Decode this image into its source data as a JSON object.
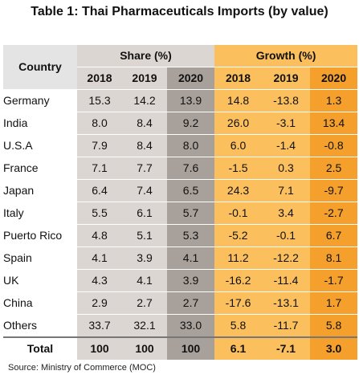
{
  "title": "Table 1: Thai Pharmaceuticals Imports (by value)",
  "headers": {
    "country": "Country",
    "share": "Share (%)",
    "growth": "Growth (%)",
    "years": [
      "2018",
      "2019",
      "2020"
    ]
  },
  "rows": [
    {
      "country": "Germany",
      "share": [
        "15.3",
        "14.2",
        "13.9"
      ],
      "growth": [
        "14.8",
        "-13.8",
        "1.3"
      ]
    },
    {
      "country": "India",
      "share": [
        "8.0",
        "8.4",
        "9.2"
      ],
      "growth": [
        "26.0",
        "-3.1",
        "13.4"
      ]
    },
    {
      "country": "U.S.A",
      "share": [
        "7.9",
        "8.4",
        "8.0"
      ],
      "growth": [
        "6.0",
        "-1.4",
        "-0.8"
      ]
    },
    {
      "country": "France",
      "share": [
        "7.1",
        "7.7",
        "7.6"
      ],
      "growth": [
        "-1.5",
        "0.3",
        "2.5"
      ]
    },
    {
      "country": "Japan",
      "share": [
        "6.4",
        "7.4",
        "6.5"
      ],
      "growth": [
        "24.3",
        "7.1",
        "-9.7"
      ]
    },
    {
      "country": "Italy",
      "share": [
        "5.5",
        "6.1",
        "5.7"
      ],
      "growth": [
        "-0.1",
        "3.4",
        "-2.7"
      ]
    },
    {
      "country": "Puerto Rico",
      "share": [
        "4.8",
        "5.1",
        "5.3"
      ],
      "growth": [
        "-5.2",
        "-0.1",
        "6.7"
      ]
    },
    {
      "country": "Spain",
      "share": [
        "4.1",
        "3.9",
        "4.1"
      ],
      "growth": [
        "11.2",
        "-12.2",
        "8.1"
      ]
    },
    {
      "country": "UK",
      "share": [
        "4.3",
        "4.1",
        "3.9"
      ],
      "growth": [
        "-16.2",
        "-11.4",
        "-1.7"
      ]
    },
    {
      "country": "China",
      "share": [
        "2.9",
        "2.7",
        "2.7"
      ],
      "growth": [
        "-17.6",
        "-13.1",
        "1.7"
      ]
    },
    {
      "country": "Others",
      "share": [
        "33.7",
        "32.1",
        "33.0"
      ],
      "growth": [
        "5.8",
        "-11.7",
        "5.8"
      ]
    }
  ],
  "total": {
    "country": "Total",
    "share": [
      "100",
      "100",
      "100"
    ],
    "growth": [
      "6.1",
      "-7.1",
      "3.0"
    ]
  },
  "source": "Source: Ministry of Commerce (MOC)",
  "colors": {
    "share_bg": "#dcd6d2",
    "share_2020_bg": "#a8a09b",
    "growth_bg": "#fbbf5e",
    "growth_2020_bg": "#f5a02d"
  }
}
